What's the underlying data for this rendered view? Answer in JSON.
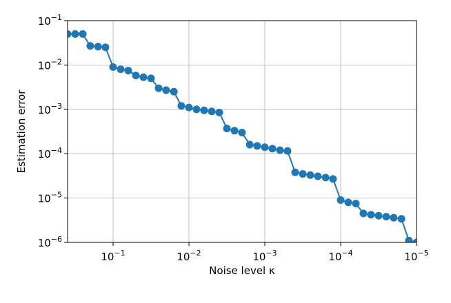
{
  "chart_data": {
    "type": "line",
    "xlabel": "Noise level κ",
    "ylabel": "Estimation error",
    "x": [
      0.398,
      0.316,
      0.251,
      0.2,
      0.158,
      0.126,
      0.1,
      0.0794,
      0.0631,
      0.0501,
      0.0398,
      0.0316,
      0.0251,
      0.02,
      0.0158,
      0.0126,
      0.01,
      0.00794,
      0.00631,
      0.00501,
      0.00398,
      0.00316,
      0.00251,
      0.002,
      0.00158,
      0.00126,
      0.001,
      0.000794,
      0.000631,
      0.000501,
      0.000398,
      0.000316,
      0.000251,
      0.0002,
      0.000158,
      0.000126,
      0.0001,
      7.94e-05,
      6.31e-05,
      5.01e-05,
      3.98e-05,
      3.16e-05,
      2.51e-05,
      2e-05,
      1.58e-05,
      1.26e-05,
      1e-05
    ],
    "series": [
      {
        "color": "#1f77b4",
        "values": [
          0.05,
          0.05,
          0.05,
          0.027,
          0.026,
          0.025,
          0.009,
          0.008,
          0.0075,
          0.0058,
          0.0053,
          0.005,
          0.003,
          0.0027,
          0.0025,
          0.0012,
          0.0011,
          0.001,
          0.00095,
          0.0009,
          0.00085,
          0.00037,
          0.00033,
          0.0003,
          0.00016,
          0.00015,
          0.00014,
          0.00013,
          0.00012,
          0.000115,
          3.8e-05,
          3.5e-05,
          3.3e-05,
          3.1e-05,
          2.9e-05,
          2.7e-05,
          9e-06,
          8e-06,
          7.5e-06,
          4.5e-06,
          4.2e-06,
          4e-06,
          3.8e-06,
          3.6e-06,
          3.4e-06,
          1.1e-06,
          1e-06
        ]
      }
    ],
    "xscale": "log",
    "yscale": "log",
    "grid": true,
    "xlim": [
      0.398,
      1e-05
    ],
    "ylim": [
      1e-06,
      0.1
    ],
    "xticks": [
      {
        "value": 0.1,
        "label": "10−1"
      },
      {
        "value": 0.01,
        "label": "10−2"
      },
      {
        "value": 0.001,
        "label": "10−3"
      },
      {
        "value": 0.0001,
        "label": "10−4"
      },
      {
        "value": 1e-05,
        "label": "10−5"
      }
    ],
    "yticks": [
      {
        "value": 1e-06,
        "label": "10−6"
      },
      {
        "value": 1e-05,
        "label": "10−5"
      },
      {
        "value": 0.0001,
        "label": "10−4"
      },
      {
        "value": 0.001,
        "label": "10−3"
      },
      {
        "value": 0.01,
        "label": "10−2"
      },
      {
        "value": 0.1,
        "label": "10−1"
      }
    ]
  }
}
